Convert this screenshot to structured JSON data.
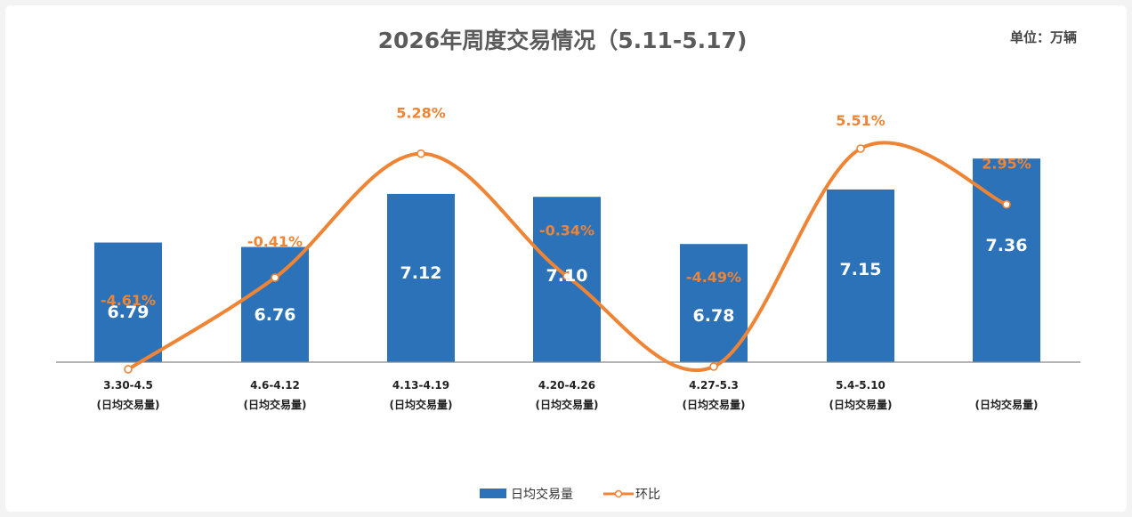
{
  "chart_data": {
    "type": "bar",
    "title": "2026年周度交易情况（5.11-5.17)",
    "unit_note": "单位：万辆",
    "categories": [
      "3.30-4.5",
      "4.6-4.12",
      "4.13-4.19",
      "4.20-4.26",
      "4.27-5.3",
      "5.4-5.10",
      ""
    ],
    "category_sub": "(日均交易量)",
    "series": [
      {
        "name": "日均交易量",
        "type": "bar",
        "color": "#2c72b8",
        "values": [
          6.79,
          6.76,
          7.12,
          7.1,
          6.78,
          7.15,
          7.36
        ],
        "labels": [
          "6.79",
          "6.76",
          "7.12",
          "7.10",
          "6.78",
          "7.15",
          "7.36"
        ]
      },
      {
        "name": "环比",
        "type": "line",
        "color": "#ee8434",
        "values": [
          -4.61,
          -0.41,
          5.28,
          -0.34,
          -4.49,
          5.51,
          2.95
        ],
        "labels": [
          "-4.61%",
          "-0.41%",
          "5.28%",
          "-0.34%",
          "-4.49%",
          "5.51%",
          "2.95%"
        ]
      }
    ],
    "legend_position": "bottom-center",
    "grid": false
  }
}
